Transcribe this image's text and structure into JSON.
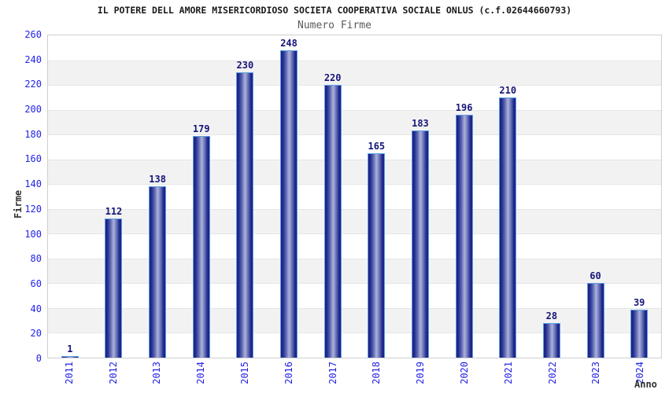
{
  "header": {
    "title": "IL POTERE DELL AMORE MISERICORDIOSO SOCIETA COOPERATIVA SOCIALE ONLUS (c.f.02644660793)",
    "subtitle": "Numero Firme"
  },
  "chart_data": {
    "type": "bar",
    "title": "IL POTERE DELL AMORE MISERICORDIOSO SOCIETA COOPERATIVA SOCIALE ONLUS (c.f.02644660793)",
    "subtitle": "Numero Firme",
    "xlabel": "Anno",
    "ylabel": "Firme",
    "categories": [
      "2011",
      "2012",
      "2013",
      "2014",
      "2015",
      "2016",
      "2017",
      "2018",
      "2019",
      "2020",
      "2021",
      "2022",
      "2023",
      "2024"
    ],
    "values": [
      1,
      112,
      138,
      179,
      230,
      248,
      220,
      165,
      183,
      196,
      210,
      28,
      60,
      39
    ],
    "ylim": [
      0,
      260
    ],
    "ytick_step": 20,
    "yticks": [
      0,
      20,
      40,
      60,
      80,
      100,
      120,
      140,
      160,
      180,
      200,
      220,
      240,
      260
    ],
    "grid": "horizontal alternating bands with gridlines every 20",
    "legend_position": "none",
    "bar_labels_shown": true
  },
  "colors": {
    "axis_tick_label": "#2323e8",
    "bar_value_label": "#16167a",
    "bar_dark": "#1a2180",
    "bar_light": "#aab2d9",
    "bar_border": "#5d9fe2",
    "band_alt": "#f2f2f2",
    "band_main": "#ffffff",
    "gridline": "#e5e5e5",
    "plot_border": "#cfcfcf",
    "title_color": "#1a1a1a",
    "subtitle_color": "#5a5a5a",
    "axis_name_color": "#303030"
  }
}
